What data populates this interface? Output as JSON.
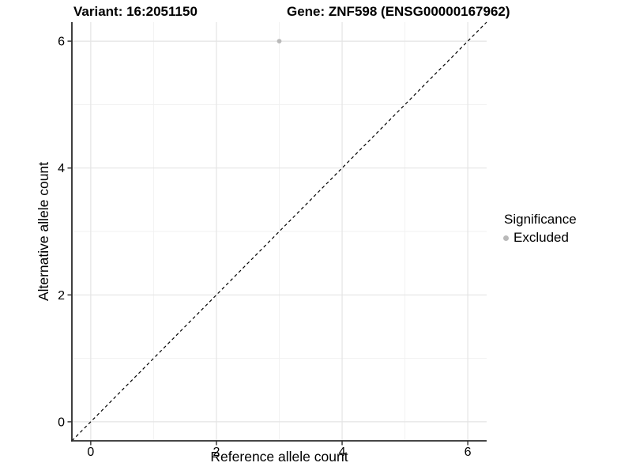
{
  "header": {
    "variant_title": "Variant: 16:2051150",
    "gene_title": "Gene: ZNF598 (ENSG00000167962)"
  },
  "chart_data": {
    "type": "scatter",
    "xlabel": "Reference allele count",
    "ylabel": "Alternative allele count",
    "xlim": [
      -0.3,
      6.3
    ],
    "ylim": [
      -0.3,
      6.3
    ],
    "x_ticks": [
      0,
      2,
      4,
      6
    ],
    "y_ticks": [
      0,
      2,
      4,
      6
    ],
    "x_minor_ticks": [
      1,
      3,
      5
    ],
    "y_minor_ticks": [
      1,
      3,
      5
    ],
    "grid": true,
    "points": [
      {
        "x": 3,
        "y": 6,
        "series": "Excluded"
      }
    ],
    "reference_line": {
      "kind": "identity",
      "slope": 1,
      "intercept": 0,
      "style": "dashed"
    },
    "legend": {
      "title": "Significance",
      "position": "right",
      "entries": [
        {
          "label": "Excluded",
          "color": "#b9b9b9"
        }
      ]
    }
  },
  "colors": {
    "point_excluded": "#b9b9b9",
    "grid_major": "#e4e4e4",
    "grid_minor": "#f1f1f1",
    "axis_line": "#2b2b2b",
    "tick_mark": "#2b2b2b",
    "reference_line": "#000000",
    "text": "#000000",
    "background": "#ffffff"
  }
}
